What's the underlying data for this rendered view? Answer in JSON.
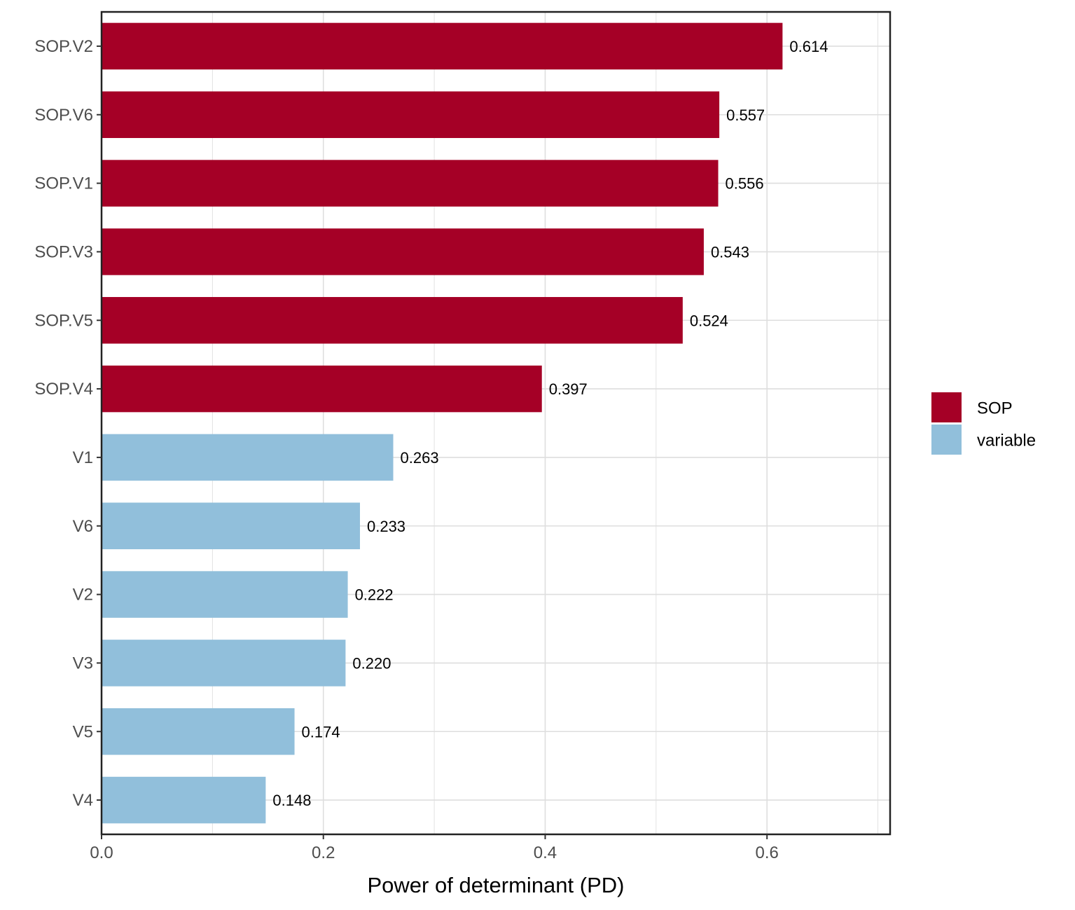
{
  "chart_data": {
    "type": "bar",
    "orientation": "horizontal",
    "categories": [
      "SOP.V2",
      "SOP.V6",
      "SOP.V1",
      "SOP.V3",
      "SOP.V5",
      "SOP.V4",
      "V1",
      "V6",
      "V2",
      "V3",
      "V5",
      "V4"
    ],
    "values": [
      0.614,
      0.557,
      0.556,
      0.543,
      0.524,
      0.397,
      0.263,
      0.233,
      0.222,
      0.22,
      0.174,
      0.148
    ],
    "value_labels": [
      "0.614",
      "0.557",
      "0.556",
      "0.543",
      "0.524",
      "0.397",
      "0.263",
      "0.233",
      "0.222",
      "0.220",
      "0.174",
      "0.148"
    ],
    "groups": [
      "SOP",
      "SOP",
      "SOP",
      "SOP",
      "SOP",
      "SOP",
      "variable",
      "variable",
      "variable",
      "variable",
      "variable",
      "variable"
    ],
    "xlabel": "Power of determinant (PD)",
    "ylabel": "",
    "xlim": [
      0,
      0.711
    ],
    "xticks": [
      0,
      0.2,
      0.4,
      0.6
    ],
    "xtick_labels": [
      "0.0",
      "0.2",
      "0.4",
      "0.6"
    ],
    "grid": true,
    "legend": {
      "placement": "right",
      "entries": [
        {
          "name": "SOP",
          "color": "#a50026"
        },
        {
          "name": "variable",
          "color": "#91bfdb"
        }
      ]
    }
  }
}
